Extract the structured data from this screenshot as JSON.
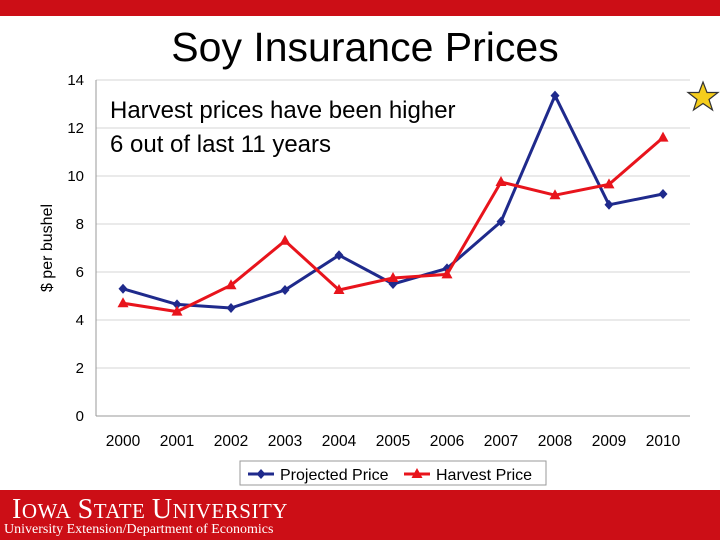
{
  "slide": {
    "title": "Soy Insurance Prices",
    "footer_logo": "Iowa State University",
    "footer_dept": "University Extension/Department of Economics"
  },
  "colors": {
    "accent": "#cc0e16",
    "projected": "#1f2a8c",
    "harvest": "#e8141c"
  },
  "icons": {
    "star": "star-icon"
  },
  "chart_data": {
    "type": "line",
    "title": "",
    "xlabel": "",
    "ylabel": "$ per bushel",
    "annotation_lines": [
      "Harvest prices have been higher",
      "6 out of last 11 years"
    ],
    "categories": [
      "2000",
      "2001",
      "2002",
      "2003",
      "2004",
      "2005",
      "2006",
      "2007",
      "2008",
      "2009",
      "2010"
    ],
    "ylim": [
      0,
      14
    ],
    "yticks": [
      0,
      2,
      4,
      6,
      8,
      10,
      12,
      14
    ],
    "grid": true,
    "legend_position": "bottom",
    "series": [
      {
        "name": "Projected Price",
        "marker": "diamond",
        "color": "#1f2a8c",
        "values": [
          5.3,
          4.65,
          4.5,
          5.25,
          6.7,
          5.5,
          6.15,
          8.1,
          13.35,
          8.8,
          9.25
        ]
      },
      {
        "name": "Harvest Price",
        "marker": "triangle",
        "color": "#e8141c",
        "values": [
          4.7,
          4.35,
          5.45,
          7.3,
          5.25,
          5.75,
          5.9,
          9.75,
          9.2,
          9.65,
          11.6
        ]
      }
    ]
  }
}
